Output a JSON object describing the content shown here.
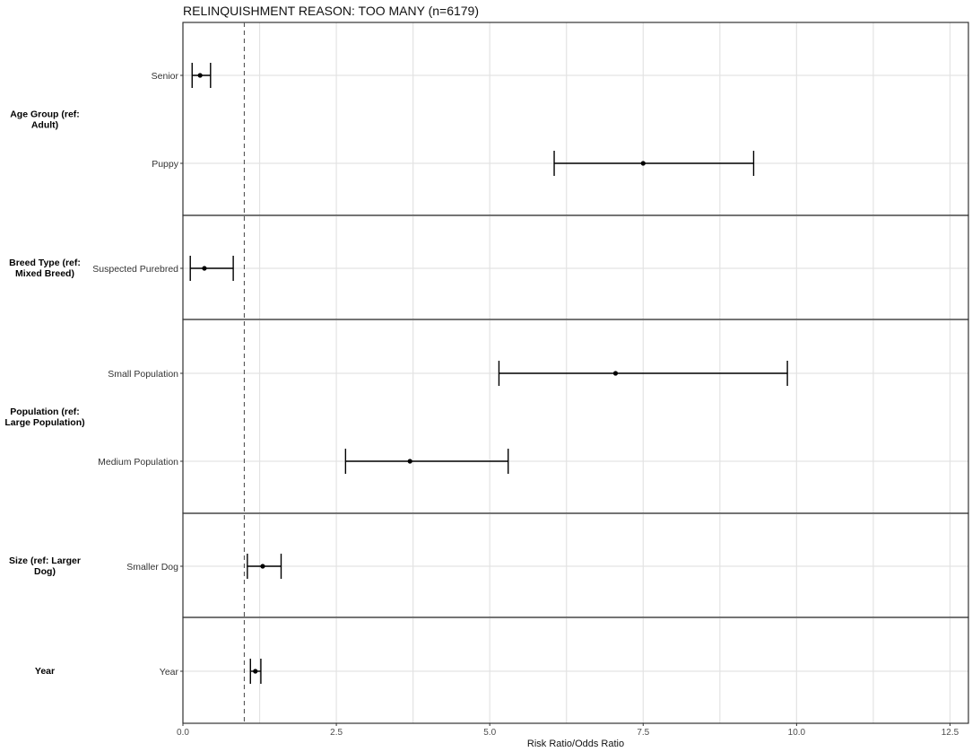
{
  "chart_data": {
    "type": "scatter",
    "subtype": "forest-plot",
    "title": "RELINQUISHMENT REASON: TOO MANY (n=6179)",
    "xlabel": "Risk Ratio/Odds Ratio",
    "xlim": [
      0,
      12.8
    ],
    "x_ticks": [
      0.0,
      2.5,
      5.0,
      7.5,
      10.0,
      12.5
    ],
    "x_tick_labels": [
      "0.0",
      "2.5",
      "5.0",
      "7.5",
      "10.0",
      "12.5"
    ],
    "reference_line": 1.0,
    "grid": true,
    "panels": [
      {
        "group": "Age Group (ref: Adult)",
        "group_lines": [
          "Age Group (ref:",
          "Adult)"
        ],
        "rows": [
          {
            "label": "Senior",
            "estimate": 0.28,
            "lower": 0.15,
            "upper": 0.45
          },
          {
            "label": "Puppy",
            "estimate": 7.5,
            "lower": 6.05,
            "upper": 9.3
          }
        ]
      },
      {
        "group": "Breed Type (ref: Mixed Breed)",
        "group_lines": [
          "Breed Type (ref:",
          "Mixed Breed)"
        ],
        "rows": [
          {
            "label": "Suspected Purebred",
            "estimate": 0.35,
            "lower": 0.12,
            "upper": 0.82
          }
        ]
      },
      {
        "group": "Population (ref: Large Population)",
        "group_lines": [
          "Population (ref:",
          "Large Population)"
        ],
        "rows": [
          {
            "label": "Small Population",
            "estimate": 7.05,
            "lower": 5.15,
            "upper": 9.85
          },
          {
            "label": "Medium Population",
            "estimate": 3.7,
            "lower": 2.65,
            "upper": 5.3
          }
        ]
      },
      {
        "group": "Size (ref: Larger Dog)",
        "group_lines": [
          "Size (ref: Larger",
          "Dog)"
        ],
        "rows": [
          {
            "label": "Smaller Dog",
            "estimate": 1.3,
            "lower": 1.05,
            "upper": 1.6
          }
        ]
      },
      {
        "group": "Year",
        "group_lines": [
          "Year"
        ],
        "rows": [
          {
            "label": "Year",
            "estimate": 1.18,
            "lower": 1.1,
            "upper": 1.27
          }
        ]
      }
    ]
  }
}
